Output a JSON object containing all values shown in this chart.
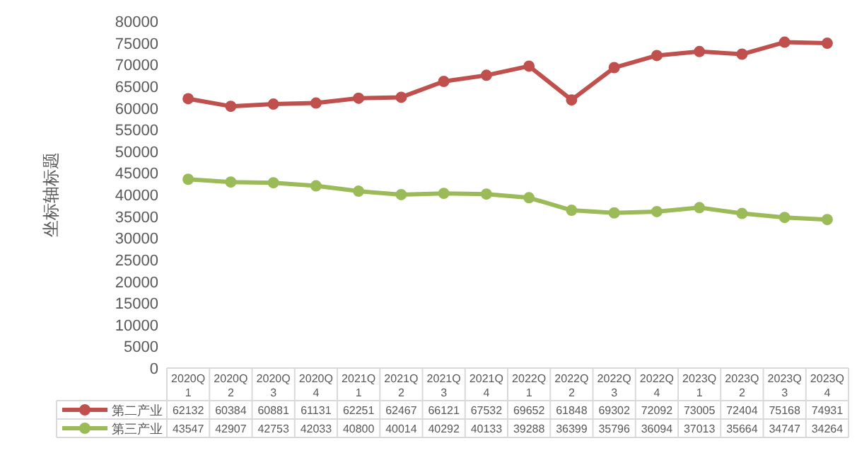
{
  "chart_data": {
    "type": "line",
    "ylabel": "坐标轴标题",
    "categories": [
      "2020Q1",
      "2020Q2",
      "2020Q3",
      "2020Q4",
      "2021Q1",
      "2021Q2",
      "2021Q3",
      "2021Q4",
      "2022Q1",
      "2022Q2",
      "2022Q3",
      "2022Q4",
      "2023Q1",
      "2023Q2",
      "2023Q3",
      "2023Q4"
    ],
    "series": [
      {
        "name": "第二产业",
        "color": "#c0504d",
        "values": [
          62132,
          60384,
          60881,
          61131,
          62251,
          62467,
          66121,
          67532,
          69652,
          61848,
          69302,
          72092,
          73005,
          72404,
          75168,
          74931
        ]
      },
      {
        "name": "第三产业",
        "color": "#9bbb59",
        "values": [
          43547,
          42907,
          42753,
          42033,
          40800,
          40014,
          40292,
          40133,
          39288,
          36399,
          35796,
          36094,
          37013,
          35664,
          34747,
          34264
        ]
      }
    ],
    "ylim": [
      0,
      80000
    ],
    "yticks": [
      0,
      5000,
      10000,
      15000,
      20000,
      25000,
      30000,
      35000,
      40000,
      45000,
      50000,
      55000,
      60000,
      65000,
      70000,
      75000,
      80000
    ],
    "data_labels": true,
    "legend": "bottom",
    "marker": "circle",
    "line_style": "solid",
    "grid": false
  }
}
